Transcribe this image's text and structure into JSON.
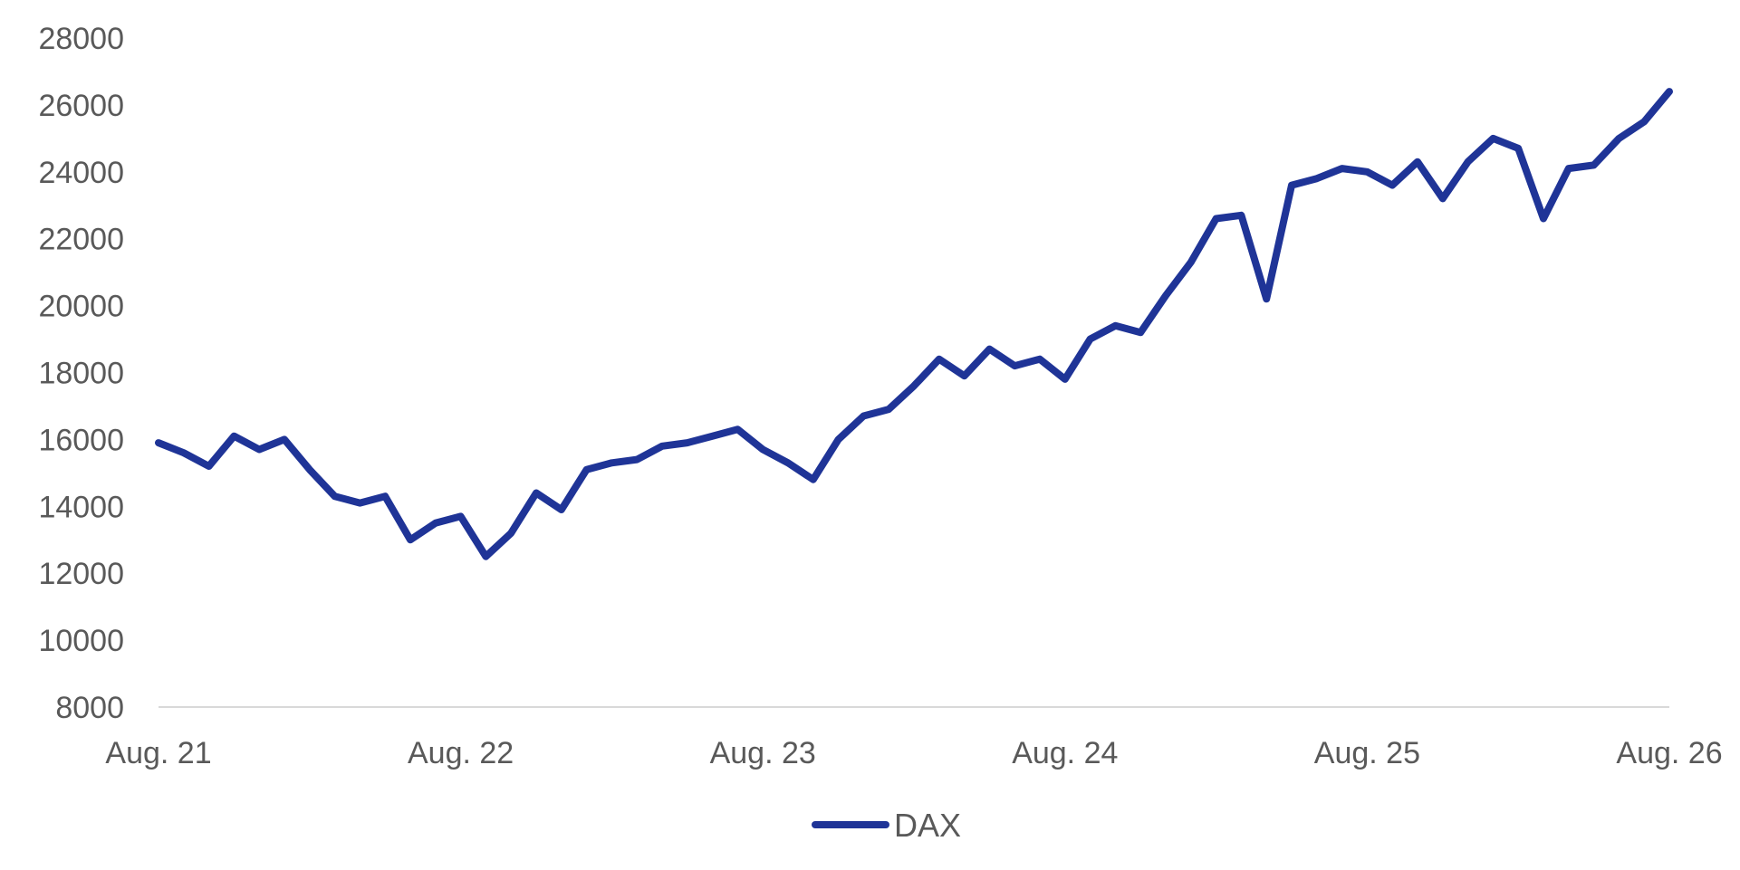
{
  "chart_data": {
    "type": "line",
    "title": "",
    "xlabel": "",
    "ylabel": "",
    "ylim": [
      8000,
      28000
    ],
    "y_ticks": [
      "28000",
      "26000",
      "24000",
      "22000",
      "20000",
      "18000",
      "16000",
      "14000",
      "12000",
      "10000",
      "8000"
    ],
    "x_ticks": [
      "Aug. 21",
      "Aug. 22",
      "Aug. 23",
      "Aug. 24",
      "Aug. 25",
      "Aug. 26"
    ],
    "x_range": [
      "2021-08",
      "2026-08"
    ],
    "grid": false,
    "legend_position": "bottom-center",
    "series": [
      {
        "name": "DAX",
        "color": "#1f3497",
        "x": [
          "2021-08",
          "2021-09",
          "2021-10",
          "2021-11",
          "2021-12",
          "2022-01",
          "2022-02",
          "2022-03",
          "2022-04",
          "2022-05",
          "2022-06",
          "2022-07",
          "2022-08",
          "2022-09",
          "2022-10",
          "2022-11",
          "2022-12",
          "2023-01",
          "2023-02",
          "2023-03",
          "2023-04",
          "2023-05",
          "2023-06",
          "2023-07",
          "2023-08",
          "2023-09",
          "2023-10",
          "2023-11",
          "2023-12",
          "2024-01",
          "2024-02",
          "2024-03",
          "2024-04",
          "2024-05",
          "2024-06",
          "2024-07",
          "2024-08",
          "2024-09",
          "2024-10",
          "2024-11",
          "2024-12",
          "2025-01",
          "2025-02",
          "2025-03",
          "2025-04",
          "2025-05",
          "2025-06",
          "2025-07",
          "2025-08",
          "2025-09",
          "2025-10",
          "2025-11",
          "2025-12",
          "2026-01",
          "2026-02",
          "2026-03",
          "2026-04",
          "2026-05",
          "2026-06",
          "2026-07",
          "2026-08"
        ],
        "values": [
          15900,
          15600,
          15200,
          16100,
          15700,
          16000,
          15100,
          14300,
          14100,
          14300,
          13000,
          13500,
          13700,
          12500,
          13200,
          14400,
          13900,
          15100,
          15300,
          15400,
          15800,
          15900,
          16100,
          16300,
          15700,
          15300,
          14800,
          16000,
          16700,
          16900,
          17600,
          18400,
          17900,
          18700,
          18200,
          18400,
          17800,
          19000,
          19400,
          19200,
          20300,
          21300,
          22600,
          22700,
          20200,
          23600,
          23800,
          24100,
          24000,
          23600,
          24300,
          23200,
          24300,
          25000,
          24700,
          22600,
          24100,
          24200,
          25000,
          25500,
          26400
        ]
      }
    ]
  }
}
